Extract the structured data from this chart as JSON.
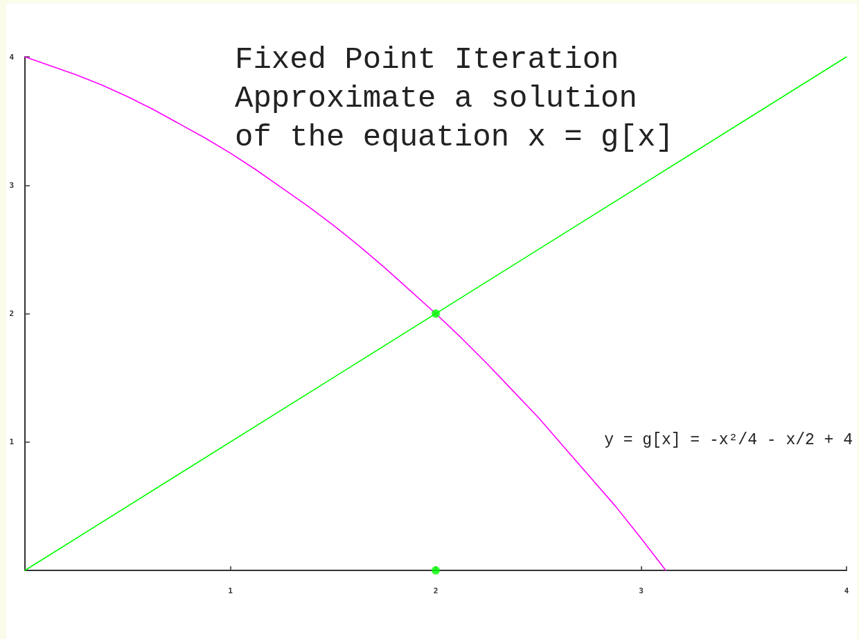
{
  "chart_data": {
    "type": "line",
    "title": "Fixed Point Iteration\nApproximate a solution\nof the equation x = g[x]",
    "annotations": [
      "y = g[x] = -x²/4 - x/2 + 4"
    ],
    "xlim": [
      0,
      4
    ],
    "xticks": [
      1,
      2,
      3,
      4
    ],
    "ylim": [
      0,
      4
    ],
    "yticks": [
      1,
      2,
      3,
      4
    ],
    "grid": false,
    "marker": "none",
    "series": [
      {
        "color": "#ff00ff",
        "x": [
          0,
          0.125,
          0.25,
          0.375,
          0.5,
          0.625,
          0.75,
          0.875,
          1,
          1.125,
          1.25,
          1.375,
          1.5,
          1.625,
          1.75,
          1.875,
          2,
          2.125,
          2.25,
          2.375,
          2.5,
          2.625,
          2.75,
          2.875,
          3,
          3.12
        ],
        "values": [
          4,
          3.93,
          3.86,
          3.78,
          3.69,
          3.59,
          3.48,
          3.37,
          3.25,
          3.12,
          2.98,
          2.84,
          2.69,
          2.53,
          2.36,
          2.18,
          2,
          1.81,
          1.61,
          1.4,
          1.19,
          0.96,
          0.73,
          0.5,
          0.25,
          0
        ]
      },
      {
        "color": "#00ff00",
        "x": [
          0,
          4
        ],
        "values": [
          0,
          4
        ]
      },
      {
        "type": "scatter",
        "marker": "circle",
        "color": "#00ff00",
        "x": [
          2,
          2
        ],
        "values": [
          2,
          0
        ]
      }
    ]
  }
}
